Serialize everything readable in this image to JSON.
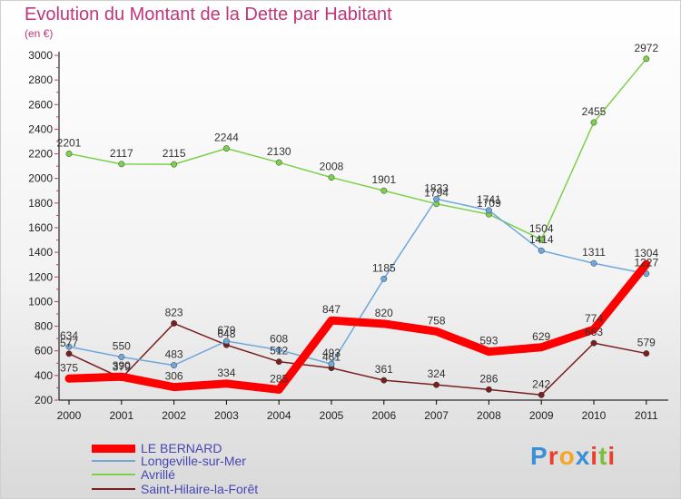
{
  "title": "Evolution du Montant de la Dette par Habitant",
  "unit_label": "(en €)",
  "logo_text": "Proxiti",
  "colors": {
    "title": "#c0367a",
    "legend_text": "#4646b4",
    "axis": "#000000"
  },
  "chart_data": {
    "type": "line",
    "title": "Evolution du Montant de la Dette par Habitant",
    "ylabel": "(en €)",
    "xlabel": "",
    "ylim": [
      200,
      3000
    ],
    "yticks": [
      200,
      400,
      600,
      800,
      1000,
      1200,
      1400,
      1600,
      1800,
      2000,
      2200,
      2400,
      2600,
      2800,
      3000
    ],
    "x": [
      "2000",
      "2001",
      "2002",
      "2003",
      "2004",
      "2005",
      "2006",
      "2007",
      "2008",
      "2009",
      "2010",
      "2011"
    ],
    "grid": false,
    "legend_position": "bottom-left",
    "series": [
      {
        "name": "Saint-Hilaire-la-Forêt",
        "color": "#7a1f1f",
        "values": [
          577,
          379,
          823,
          648,
          512,
          461,
          361,
          324,
          286,
          242,
          663,
          579
        ],
        "labels": [
          "577",
          "379",
          "823",
          "648",
          "512",
          "461",
          "361",
          "324",
          "286",
          "242",
          "663",
          "579"
        ]
      },
      {
        "name": "Avrillé",
        "color": "#7cd14a",
        "values": [
          2201,
          2117,
          2115,
          2244,
          2130,
          2008,
          1901,
          1794,
          1709,
          1504,
          2455,
          2972
        ],
        "labels": [
          "2201",
          "2117",
          "2115",
          "2244",
          "2130",
          "2008",
          "1901",
          "1794",
          "1709",
          "1504",
          "2455",
          "2972"
        ]
      },
      {
        "name": "Longeville-sur-Mer",
        "color": "#6fa8dc",
        "values": [
          634,
          550,
          483,
          679,
          608,
          493,
          1185,
          1833,
          1741,
          1414,
          1311,
          1227
        ],
        "labels": [
          "634",
          "550",
          "483",
          "679",
          "608",
          "493",
          "1185",
          "1833",
          "1741",
          "1414",
          "1311",
          "1227"
        ]
      },
      {
        "name": "LE BERNARD",
        "color": "#ff0000",
        "values": [
          375,
          390,
          306,
          334,
          285,
          847,
          820,
          758,
          593,
          629,
          774,
          1304
        ],
        "labels": [
          "375",
          "390",
          "306",
          "334",
          "285",
          "847",
          "820",
          "758",
          "593",
          "629",
          "774",
          "1304"
        ]
      }
    ]
  },
  "legend": [
    {
      "name": "LE BERNARD",
      "color": "#ff0000",
      "thickness": "thick"
    },
    {
      "name": "Longeville-sur-Mer",
      "color": "#6fa8dc",
      "thickness": "thin"
    },
    {
      "name": "Avrillé",
      "color": "#7cd14a",
      "thickness": "thin"
    },
    {
      "name": "Saint-Hilaire-la-Forêt",
      "color": "#7a1f1f",
      "thickness": "thin"
    }
  ]
}
